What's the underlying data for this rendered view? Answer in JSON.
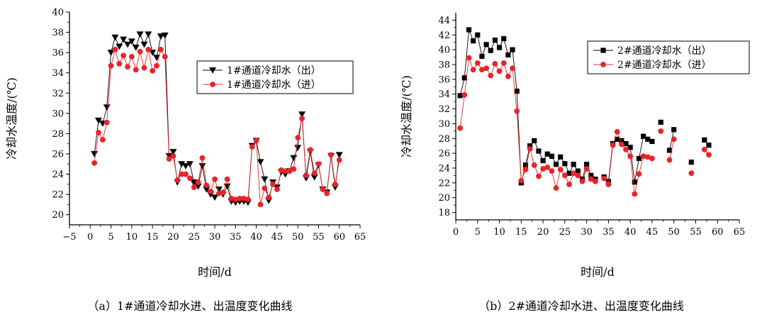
{
  "chart_data": [
    {
      "type": "line",
      "caption": "（a）1#通道冷却水进、出温度变化曲线",
      "xlabel": "时间/d",
      "ylabel": "冷却水温度/(℃)",
      "xlim": [
        -5,
        65
      ],
      "ylim": [
        19,
        40
      ],
      "xticks": [
        -5,
        0,
        5,
        10,
        15,
        20,
        25,
        30,
        35,
        40,
        45,
        50,
        55,
        60,
        65
      ],
      "yticks": [
        20,
        22,
        24,
        26,
        28,
        30,
        32,
        34,
        36,
        38,
        40
      ],
      "legend_position": "upper-right",
      "series": [
        {
          "name": "1#通道冷却水（出）",
          "marker": "triangle-down",
          "color": "#000000",
          "x": [
            1,
            2,
            3,
            4,
            5,
            6,
            7,
            8,
            9,
            10,
            11,
            12,
            13,
            14,
            15,
            16,
            17,
            18,
            19,
            20,
            21,
            22,
            23,
            24,
            25,
            26,
            27,
            28,
            29,
            30,
            31,
            32,
            33,
            34,
            35,
            36,
            37,
            38,
            39,
            40,
            41,
            42,
            43,
            44,
            45,
            46,
            47,
            48,
            49,
            50,
            51,
            52,
            53,
            54,
            55,
            56,
            57,
            58,
            59,
            60
          ],
          "y": [
            26.0,
            29.3,
            29.0,
            30.6,
            36.0,
            37.5,
            36.6,
            37.3,
            36.8,
            37.1,
            36.5,
            37.8,
            36.8,
            37.8,
            36.0,
            35.5,
            37.6,
            37.7,
            25.8,
            26.2,
            23.2,
            25.0,
            24.8,
            25.0,
            23.2,
            22.8,
            24.8,
            22.5,
            22.0,
            21.7,
            22.5,
            22.0,
            22.8,
            21.3,
            21.2,
            21.3,
            21.3,
            21.2,
            26.8,
            27.3,
            25.2,
            23.5,
            21.4,
            23.2,
            22.7,
            24.2,
            24.0,
            24.3,
            25.6,
            26.6,
            29.9,
            23.6,
            26.2,
            23.7,
            24.9,
            22.5,
            22.2,
            25.8,
            22.7,
            25.9
          ]
        },
        {
          "name": "1#通道冷却水（进）",
          "marker": "circle",
          "color": "#e8242a",
          "x": [
            1,
            2,
            3,
            4,
            5,
            6,
            7,
            8,
            9,
            10,
            11,
            12,
            13,
            14,
            15,
            16,
            17,
            18,
            19,
            20,
            21,
            22,
            23,
            24,
            25,
            26,
            27,
            28,
            29,
            30,
            31,
            32,
            33,
            34,
            35,
            36,
            37,
            38,
            39,
            40,
            41,
            42,
            43,
            44,
            45,
            46,
            47,
            48,
            49,
            50,
            51,
            52,
            53,
            54,
            55,
            56,
            57,
            58,
            59,
            60
          ],
          "y": [
            25.1,
            28.1,
            27.4,
            29.1,
            34.7,
            36.3,
            34.9,
            35.7,
            34.6,
            35.6,
            34.3,
            36.1,
            34.5,
            36.3,
            34.2,
            34.7,
            36.3,
            35.6,
            25.5,
            25.8,
            23.4,
            24.0,
            24.0,
            23.6,
            22.7,
            23.2,
            25.6,
            22.9,
            22.3,
            23.5,
            22.1,
            22.2,
            23.5,
            21.6,
            21.5,
            21.6,
            21.6,
            21.5,
            26.7,
            27.3,
            21.0,
            22.6,
            21.7,
            23.0,
            22.5,
            24.4,
            24.3,
            24.3,
            24.5,
            27.6,
            29.5,
            23.9,
            26.4,
            24.1,
            25.0,
            22.5,
            22.1,
            25.9,
            23.0,
            25.4
          ]
        }
      ]
    },
    {
      "type": "line",
      "caption": "（b）2#通道冷却水进、出温度变化曲线",
      "xlabel": "时间/d",
      "ylabel": "冷却水温度/(℃)",
      "xlim": [
        0,
        65
      ],
      "ylim": [
        17,
        45
      ],
      "xticks": [
        0,
        5,
        10,
        15,
        20,
        25,
        30,
        35,
        40,
        45,
        50,
        55,
        60,
        65
      ],
      "yticks": [
        18,
        20,
        22,
        24,
        26,
        28,
        30,
        32,
        34,
        36,
        38,
        40,
        42,
        44
      ],
      "legend_position": "upper-right",
      "series": [
        {
          "name": "2#通道冷却水（出）",
          "marker": "square",
          "color": "#000000",
          "x": [
            1,
            2,
            3,
            4,
            5,
            6,
            7,
            8,
            9,
            10,
            11,
            12,
            13,
            14,
            15,
            16,
            17,
            18,
            19,
            20,
            21,
            22,
            23,
            24,
            25,
            26,
            27,
            28,
            29,
            30,
            31,
            32,
            33,
            34,
            35,
            36,
            37,
            38,
            39,
            40,
            41,
            42,
            43,
            44,
            45,
            null,
            47,
            null,
            49,
            50,
            null,
            null,
            null,
            54,
            null,
            null,
            57,
            58
          ],
          "y": [
            33.8,
            36.2,
            42.7,
            41.2,
            42.0,
            39.1,
            40.7,
            39.9,
            41.3,
            40.3,
            41.5,
            39.3,
            40.0,
            34.4,
            22.0,
            24.4,
            27.0,
            27.7,
            26.3,
            25.0,
            25.9,
            25.6,
            24.5,
            25.5,
            24.6,
            23.3,
            24.5,
            23.6,
            22.5,
            24.5,
            23.0,
            22.5,
            null,
            22.8,
            22.2,
            27.3,
            27.9,
            27.7,
            27.3,
            26.8,
            22.1,
            25.3,
            28.3,
            27.9,
            27.6,
            null,
            30.2,
            null,
            26.4,
            29.2,
            null,
            null,
            null,
            24.8,
            null,
            null,
            27.8,
            27.1
          ]
        },
        {
          "name": "2#通道冷却水（进）",
          "marker": "circle",
          "color": "#e8242a",
          "x": [
            1,
            2,
            3,
            4,
            5,
            6,
            7,
            8,
            9,
            10,
            11,
            12,
            13,
            14,
            15,
            16,
            17,
            18,
            19,
            20,
            21,
            22,
            23,
            24,
            25,
            26,
            27,
            28,
            29,
            30,
            31,
            32,
            33,
            34,
            35,
            36,
            37,
            38,
            39,
            40,
            41,
            42,
            43,
            44,
            45,
            null,
            47,
            null,
            49,
            50,
            null,
            null,
            null,
            54,
            null,
            null,
            57,
            58
          ],
          "y": [
            29.4,
            33.9,
            38.9,
            37.3,
            38.2,
            37.3,
            37.5,
            36.5,
            38.1,
            37.1,
            38.2,
            36.4,
            37.5,
            31.7,
            22.3,
            23.8,
            26.6,
            24.4,
            22.9,
            23.9,
            24.1,
            23.6,
            21.3,
            23.8,
            23.0,
            21.8,
            23.3,
            23.0,
            22.2,
            23.9,
            22.5,
            22.2,
            null,
            22.6,
            21.8,
            27.1,
            28.9,
            27.2,
            26.5,
            25.6,
            20.5,
            23.2,
            25.6,
            25.5,
            25.3,
            null,
            29.0,
            null,
            25.1,
            27.9,
            null,
            null,
            null,
            23.3,
            null,
            null,
            26.5,
            25.8
          ]
        }
      ]
    }
  ]
}
